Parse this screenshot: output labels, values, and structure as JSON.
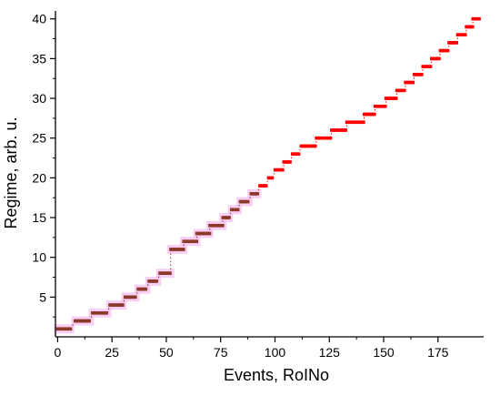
{
  "chart_data": {
    "type": "scatter",
    "title": "",
    "xlabel": "Events, RoINo",
    "ylabel": "Regime, arb. u.",
    "xlim": [
      -1,
      196
    ],
    "ylim": [
      0,
      41
    ],
    "xticks": [
      0,
      25,
      50,
      75,
      100,
      125,
      150,
      175
    ],
    "yticks": [
      5,
      10,
      15,
      20,
      25,
      30,
      35,
      40
    ],
    "grid": false,
    "legend": "none",
    "colors": {
      "early": "#8b3a2a",
      "late": "#ff0000",
      "halo": "#f7c6f0",
      "axis": "#000000"
    },
    "series": [
      {
        "values": [
          {
            "y": 1,
            "x": [
              0,
              6
            ]
          },
          {
            "y": 2,
            "x": [
              8,
              15
            ]
          },
          {
            "y": 3,
            "x": [
              16,
              23
            ]
          },
          {
            "y": 4,
            "x": [
              24,
              30
            ]
          },
          {
            "y": 5,
            "x": [
              31,
              36
            ]
          },
          {
            "y": 6,
            "x": [
              37,
              41
            ]
          },
          {
            "y": 7,
            "x": [
              42,
              46
            ]
          },
          {
            "y": 8,
            "x": [
              47,
              52
            ]
          },
          {
            "y": 11,
            "x": [
              52,
              58
            ]
          },
          {
            "y": 12,
            "x": [
              58,
              64
            ]
          },
          {
            "y": 13,
            "x": [
              64,
              70
            ]
          },
          {
            "y": 14,
            "x": [
              70,
              76
            ]
          },
          {
            "y": 15,
            "x": [
              76,
              79
            ]
          },
          {
            "y": 16,
            "x": [
              80,
              83
            ]
          },
          {
            "y": 17,
            "x": [
              84,
              88
            ]
          },
          {
            "y": 18,
            "x": [
              89,
              92
            ]
          },
          {
            "y": 19,
            "x": [
              93,
              96
            ]
          },
          {
            "y": 20,
            "x": [
              97,
              99
            ]
          },
          {
            "y": 21,
            "x": [
              100,
              104
            ]
          },
          {
            "y": 22,
            "x": [
              104,
              107
            ]
          },
          {
            "y": 23,
            "x": [
              108,
              111
            ]
          },
          {
            "y": 24,
            "x": [
              112,
              119
            ]
          },
          {
            "y": 25,
            "x": [
              119,
              126
            ]
          },
          {
            "y": 26,
            "x": [
              126,
              133
            ]
          },
          {
            "y": 27,
            "x": [
              133,
              141
            ]
          },
          {
            "y": 28,
            "x": [
              141,
              146
            ]
          },
          {
            "y": 29,
            "x": [
              146,
              151
            ]
          },
          {
            "y": 30,
            "x": [
              151,
              156
            ]
          },
          {
            "y": 31,
            "x": [
              156,
              160
            ]
          },
          {
            "y": 32,
            "x": [
              160,
              164
            ]
          },
          {
            "y": 33,
            "x": [
              164,
              168
            ]
          },
          {
            "y": 34,
            "x": [
              168,
              172
            ]
          },
          {
            "y": 35,
            "x": [
              172,
              176
            ]
          },
          {
            "y": 36,
            "x": [
              176,
              180
            ]
          },
          {
            "y": 37,
            "x": [
              180,
              184
            ]
          },
          {
            "y": 38,
            "x": [
              184,
              188
            ]
          },
          {
            "y": 39,
            "x": [
              188,
              191
            ]
          },
          {
            "y": 40,
            "x": [
              191,
              194
            ]
          }
        ]
      }
    ]
  }
}
